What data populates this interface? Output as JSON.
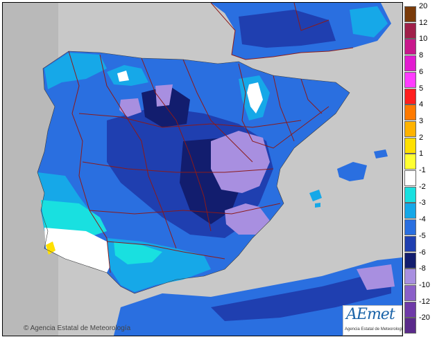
{
  "map": {
    "title": "",
    "copyright": "Agencia Estatal de Meteorología",
    "logo": {
      "word": "AEmet",
      "subtitle": "Agencia Estatal de Meteorología"
    },
    "region": "Iberian Peninsula and Balearic Islands",
    "land_colors": {
      "sea": "#c8c8c8",
      "sea_ocean": "#b9b9b9",
      "boundaries": "#8b1a1a"
    }
  },
  "legend": {
    "name": "temperature-anomaly-scale",
    "entries": [
      {
        "label": "20",
        "color": "#7a3b0a"
      },
      {
        "label": "12",
        "color": "#a0204a"
      },
      {
        "label": "10",
        "color": "#c8188c"
      },
      {
        "label": "8",
        "color": "#e21cd0"
      },
      {
        "label": "6",
        "color": "#ff3cff"
      },
      {
        "label": "5",
        "color": "#ff1f1f"
      },
      {
        "label": "4",
        "color": "#ff7a00"
      },
      {
        "label": "3",
        "color": "#ffb300"
      },
      {
        "label": "2",
        "color": "#ffe000"
      },
      {
        "label": "1",
        "color": "#ffff33"
      },
      {
        "label": "-1",
        "color": "#ffffff"
      },
      {
        "label": "-2",
        "color": "#19e0e0"
      },
      {
        "label": "-3",
        "color": "#16a8e8"
      },
      {
        "label": "-4",
        "color": "#2a6fe0"
      },
      {
        "label": "-5",
        "color": "#1f3fb0"
      },
      {
        "label": "-6",
        "color": "#121d6e"
      },
      {
        "label": "-8",
        "color": "#a88fe0"
      },
      {
        "label": "-10",
        "color": "#8a5fc8"
      },
      {
        "label": "-12",
        "color": "#6f3aa8"
      },
      {
        "label": "-20",
        "color": "#5a2a8a"
      }
    ]
  }
}
